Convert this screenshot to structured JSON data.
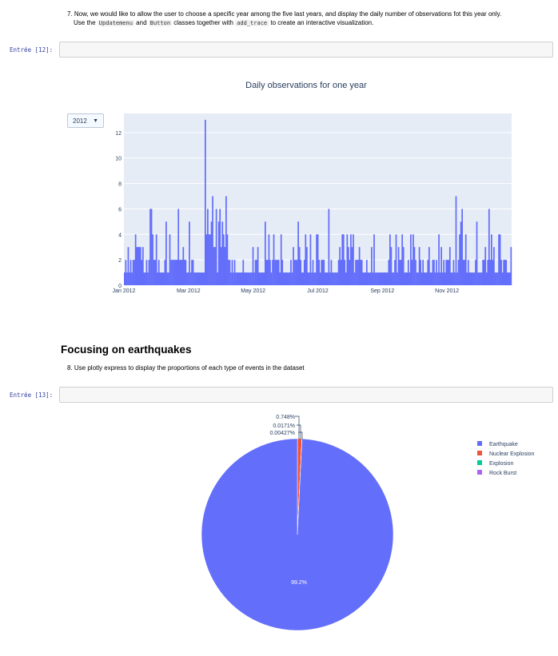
{
  "cell7": {
    "line1": "7. Now, we would like to allow the user to choose a specific year among the five last years, and display the daily number of observations fot this year only.",
    "line2_pre": "Use the ",
    "code1": "Updatemenu",
    "and": " and ",
    "code2": "Button",
    "line2_mid": " classes together with ",
    "code3": "add_trace",
    "line2_post": " to create an interactive visualization."
  },
  "prompt12": "Entrée [12]:",
  "prompt13": "Entrée [13]:",
  "section_title": "Focusing on earthquakes",
  "cell8": "8. Use plotly express to display the proportions of each type of events in the dataset",
  "year_dropdown": {
    "selected": "2012",
    "arrow": "▼"
  },
  "colors": {
    "bar": "#636efa",
    "plot_bg": "#e5ecf6",
    "pie1": "#636efa",
    "pie2": "#ef553b",
    "pie3": "#00cc96",
    "pie4": "#ab63fa"
  },
  "chart_data": [
    {
      "type": "bar",
      "title": "Daily observations for one year",
      "x_ticks": [
        "Jan 2012",
        "Mar 2012",
        "May 2012",
        "Jul 2012",
        "Sep 2012",
        "Nov 2012"
      ],
      "y_ticks": [
        "0",
        "2",
        "4",
        "6",
        "8",
        "10",
        "12"
      ],
      "ylim": [
        0,
        13.5
      ],
      "grid": true,
      "values": [
        1,
        2,
        1,
        3,
        1,
        2,
        1,
        2,
        2,
        4,
        3,
        3,
        3,
        3,
        2,
        3,
        1,
        1,
        2,
        1,
        2,
        6,
        6,
        4,
        2,
        2,
        4,
        1,
        2,
        1,
        1,
        1,
        1,
        2,
        5,
        1,
        1,
        4,
        2,
        2,
        2,
        2,
        2,
        2,
        6,
        2,
        2,
        2,
        3,
        2,
        2,
        1,
        1,
        5,
        1,
        2,
        2,
        1,
        1,
        1,
        1,
        1,
        1,
        1,
        1,
        1,
        13,
        4,
        6,
        4,
        4,
        5,
        7,
        3,
        3,
        6,
        1,
        5,
        6,
        3,
        5,
        4,
        3,
        7,
        4,
        2,
        2,
        1,
        2,
        1,
        2,
        1,
        1,
        1,
        1,
        1,
        1,
        2,
        1,
        1,
        1,
        1,
        1,
        1,
        1,
        3,
        1,
        2,
        2,
        3,
        1,
        1,
        1,
        1,
        1,
        5,
        2,
        2,
        4,
        2,
        1,
        2,
        4,
        2,
        2,
        2,
        2,
        1,
        4,
        2,
        1,
        1,
        1,
        1,
        1,
        1,
        2,
        1,
        3,
        2,
        2,
        2,
        5,
        3,
        2,
        1,
        1,
        2,
        4,
        3,
        1,
        1,
        4,
        1,
        2,
        1,
        1,
        4,
        4,
        2,
        1,
        2,
        2,
        2,
        1,
        1,
        1,
        6,
        1,
        2,
        1,
        1,
        1,
        1,
        1,
        2,
        3,
        2,
        4,
        4,
        2,
        1,
        4,
        3,
        2,
        4,
        3,
        4,
        1,
        2,
        2,
        2,
        3,
        2,
        2,
        1,
        1,
        1,
        2,
        1,
        1,
        1,
        3,
        1,
        4,
        1,
        1,
        1,
        1,
        1,
        1,
        1,
        1,
        1,
        1,
        1,
        2,
        4,
        3,
        1,
        1,
        2,
        4,
        1,
        3,
        2,
        2,
        4,
        3,
        1,
        1,
        1,
        2,
        1,
        4,
        2,
        4,
        3,
        2,
        1,
        1,
        3,
        2,
        1,
        2,
        1,
        1,
        1,
        2,
        3,
        1,
        1,
        2,
        2,
        1,
        2,
        1,
        4,
        1,
        3,
        1,
        2,
        1,
        2,
        2,
        2,
        3,
        1,
        1,
        2,
        1,
        7,
        1,
        2,
        4,
        5,
        6,
        2,
        2,
        4,
        1,
        2,
        1,
        1,
        1,
        1,
        1,
        2,
        5,
        1,
        1,
        1,
        1,
        2,
        2,
        3,
        1,
        2,
        6,
        2,
        4,
        2,
        3,
        1,
        1,
        1,
        4,
        4,
        2,
        1,
        2,
        2,
        2,
        1,
        1,
        1,
        3
      ]
    },
    {
      "type": "pie",
      "labels": [
        "Earthquake",
        "Nuclear Explosion",
        "Explosion",
        "Rock Burst"
      ],
      "values": [
        99.2,
        0.748,
        0.0171,
        0.00427
      ],
      "text_labels": [
        "99.2%",
        "0.748%",
        "0.0171%",
        "0.00427%"
      ],
      "legend_position": "top-right"
    }
  ]
}
